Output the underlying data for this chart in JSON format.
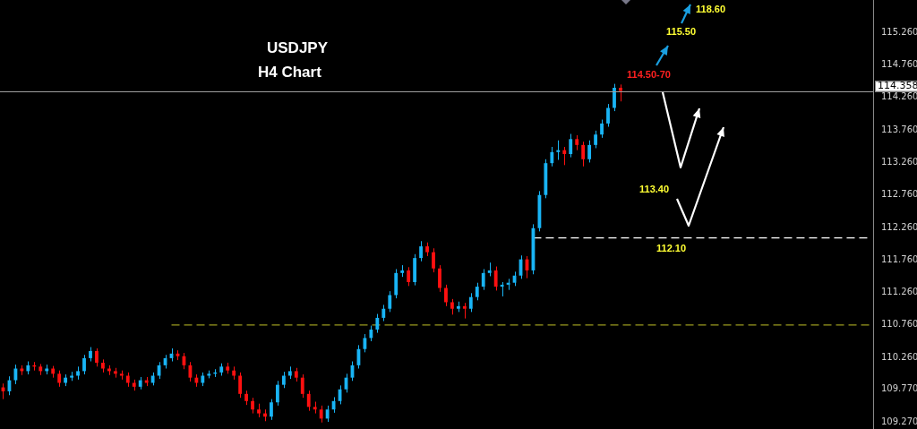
{
  "chart_data": {
    "type": "candlestick",
    "title": "USDJPY",
    "subtitle": "H4 Chart",
    "categories": [
      null,
      null,
      null,
      null,
      null,
      null,
      null,
      null,
      null,
      null,
      null,
      null,
      null,
      null,
      null,
      null,
      null,
      null,
      null,
      null,
      null,
      null,
      null,
      null,
      null,
      null,
      null,
      null,
      null,
      null,
      null,
      null,
      null,
      null,
      null,
      null,
      null,
      null,
      null,
      null,
      null,
      null,
      null,
      null,
      null,
      null,
      null,
      null,
      null,
      null,
      null,
      null,
      null,
      null,
      null,
      null,
      null,
      null,
      null,
      null,
      null,
      null,
      null,
      null,
      null,
      null,
      null,
      null,
      null,
      null,
      null,
      null,
      null,
      null,
      null,
      null,
      null,
      null,
      null,
      null,
      null,
      null,
      null,
      null,
      null,
      null,
      null,
      null,
      null,
      null,
      null,
      null,
      null,
      null,
      null,
      null,
      null,
      null,
      null,
      null,
      null,
      null,
      null,
      null,
      null,
      null,
      null,
      null,
      null,
      null,
      null,
      null,
      null,
      null,
      null,
      null,
      null,
      null,
      null,
      null,
      null,
      null,
      null,
      null,
      null,
      null,
      null,
      null,
      null,
      null,
      null,
      null,
      null,
      null,
      null,
      null,
      null,
      null,
      null,
      null
    ],
    "colors": [
      "#ff1010",
      "#19b4f5",
      "#19b4f5",
      "#ff1010",
      "#19b4f5",
      "#ff1010",
      "#ff1010",
      "#19b4f5",
      "#ff1010",
      "#ff1010",
      "#19b4f5",
      "#19b4f5",
      "#19b4f5",
      "#19b4f5",
      "#19b4f5",
      "#ff1010",
      "#ff1010",
      "#ff1010",
      "#ff1010",
      "#ff1010",
      "#ff1010",
      "#ff1010",
      "#19b4f5",
      "#ff1010",
      "#19b4f5",
      "#19b4f5",
      "#19b4f5",
      "#19b4f5",
      "#ff1010",
      "#ff1010",
      "#ff1010",
      "#ff1010",
      "#19b4f5",
      "#19b4f5",
      "#19b4f5",
      "#19b4f5",
      "#ff1010",
      "#ff1010",
      "#ff1010",
      "#ff1010",
      "#ff1010",
      "#ff1010",
      "#ff1010",
      "#19b4f5",
      "#19b4f5",
      "#19b4f5",
      "#19b4f5",
      "#ff1010",
      "#ff1010",
      "#ff1010",
      "#ff1010",
      "#ff1010",
      "#19b4f5",
      "#19b4f5",
      "#19b4f5",
      "#19b4f5",
      "#19b4f5",
      "#19b4f5",
      "#19b4f5",
      "#19b4f5",
      "#19b4f5",
      "#19b4f5",
      "#19b4f5",
      "#19b4f5",
      "#19b4f5",
      "#ff1010",
      "#19b4f5",
      "#19b4f5",
      "#ff1010",
      "#ff1010",
      "#ff1010",
      "#ff1010",
      "#ff1010",
      "#19b4f5",
      "#ff1010",
      "#19b4f5",
      "#19b4f5",
      "#19b4f5",
      "#19b4f5",
      "#ff1010",
      "#19b4f5",
      "#19b4f5",
      "#19b4f5",
      "#19b4f5",
      "#ff1010",
      "#19b4f5",
      "#19b4f5",
      "#19b4f5",
      "#19b4f5",
      "#19b4f5",
      "#ff1010",
      "#19b4f5",
      "#ff1010",
      "#ff1010",
      "#19b4f5",
      "#19b4f5",
      "#19b4f5",
      "#19b4f5",
      "#19b4f5",
      "#ff1010",
      null,
      null,
      null,
      null,
      null,
      null,
      null,
      null,
      null,
      null,
      null,
      null,
      null,
      null,
      null,
      null,
      null,
      null,
      null,
      null,
      null,
      null,
      null,
      null,
      null,
      null,
      null,
      null,
      null,
      null,
      null,
      null,
      null,
      null,
      null,
      null,
      null,
      null,
      null,
      null
    ],
    "ohlc": [
      [
        109.8,
        109.86,
        109.62,
        109.74
      ],
      [
        109.74,
        109.97,
        109.68,
        109.91
      ],
      [
        109.91,
        110.15,
        109.85,
        110.09
      ],
      [
        110.09,
        110.14,
        109.99,
        110.05
      ],
      [
        110.05,
        110.2,
        110.0,
        110.14
      ],
      [
        110.14,
        110.19,
        110.06,
        110.12
      ],
      [
        110.12,
        110.16,
        109.99,
        110.05
      ],
      [
        110.05,
        110.15,
        110.0,
        110.09
      ],
      [
        110.09,
        110.13,
        109.95,
        110.01
      ],
      [
        110.01,
        110.06,
        109.81,
        109.87
      ],
      [
        109.87,
        110.0,
        109.82,
        109.95
      ],
      [
        109.95,
        110.04,
        109.9,
        109.98
      ],
      [
        109.98,
        110.12,
        109.92,
        110.05
      ],
      [
        110.05,
        110.3,
        110.0,
        110.25
      ],
      [
        110.25,
        110.42,
        110.2,
        110.36
      ],
      [
        110.36,
        110.4,
        110.12,
        110.18
      ],
      [
        110.18,
        110.23,
        110.03,
        110.09
      ],
      [
        110.09,
        110.14,
        109.99,
        110.05
      ],
      [
        110.05,
        110.1,
        109.95,
        110.01
      ],
      [
        110.01,
        110.06,
        109.92,
        109.98
      ],
      [
        109.98,
        110.03,
        109.81,
        109.87
      ],
      [
        109.87,
        109.92,
        109.75,
        109.81
      ],
      [
        109.81,
        109.96,
        109.77,
        109.91
      ],
      [
        109.91,
        109.96,
        109.82,
        109.87
      ],
      [
        109.87,
        110.03,
        109.83,
        109.98
      ],
      [
        109.98,
        110.19,
        109.93,
        110.14
      ],
      [
        110.14,
        110.3,
        110.09,
        110.25
      ],
      [
        110.25,
        110.4,
        110.2,
        110.32
      ],
      [
        110.32,
        110.37,
        110.22,
        110.28
      ],
      [
        110.28,
        110.33,
        110.08,
        110.14
      ],
      [
        110.14,
        110.19,
        109.89,
        109.95
      ],
      [
        109.95,
        110.0,
        109.81,
        109.87
      ],
      [
        109.87,
        110.03,
        109.82,
        109.98
      ],
      [
        109.98,
        110.06,
        109.94,
        110.01
      ],
      [
        110.01,
        110.08,
        109.96,
        110.03
      ],
      [
        110.03,
        110.17,
        109.98,
        110.12
      ],
      [
        110.12,
        110.18,
        110.01,
        110.06
      ],
      [
        110.06,
        110.12,
        109.92,
        109.98
      ],
      [
        109.98,
        110.03,
        109.64,
        109.7
      ],
      [
        109.7,
        109.75,
        109.53,
        109.59
      ],
      [
        109.59,
        109.64,
        109.4,
        109.46
      ],
      [
        109.46,
        109.55,
        109.34,
        109.4
      ],
      [
        109.4,
        109.46,
        109.28,
        109.35
      ],
      [
        109.35,
        109.62,
        109.3,
        109.57
      ],
      [
        109.57,
        109.9,
        109.52,
        109.84
      ],
      [
        109.84,
        110.04,
        109.79,
        109.98
      ],
      [
        109.98,
        110.12,
        109.93,
        110.05
      ],
      [
        110.05,
        110.1,
        109.89,
        109.95
      ],
      [
        109.95,
        110.0,
        109.64,
        109.7
      ],
      [
        109.7,
        109.75,
        109.44,
        109.5
      ],
      [
        109.5,
        109.58,
        109.4,
        109.46
      ],
      [
        109.46,
        109.52,
        109.26,
        109.32
      ],
      [
        109.32,
        109.52,
        109.27,
        109.46
      ],
      [
        109.46,
        109.65,
        109.41,
        109.59
      ],
      [
        109.59,
        109.83,
        109.54,
        109.77
      ],
      [
        109.77,
        110.01,
        109.72,
        109.95
      ],
      [
        109.95,
        110.2,
        109.9,
        110.14
      ],
      [
        110.14,
        110.45,
        110.09,
        110.39
      ],
      [
        110.39,
        110.62,
        110.34,
        110.56
      ],
      [
        110.56,
        110.75,
        110.51,
        110.69
      ],
      [
        110.69,
        110.93,
        110.64,
        110.87
      ],
      [
        110.87,
        111.07,
        110.82,
        111.01
      ],
      [
        111.01,
        111.28,
        110.96,
        111.22
      ],
      [
        111.22,
        111.62,
        111.17,
        111.56
      ],
      [
        111.56,
        111.68,
        111.5,
        111.6
      ],
      [
        111.6,
        111.65,
        111.36,
        111.42
      ],
      [
        111.42,
        111.85,
        111.37,
        111.79
      ],
      [
        111.79,
        112.05,
        111.74,
        111.97
      ],
      [
        111.97,
        112.03,
        111.82,
        111.88
      ],
      [
        111.88,
        111.94,
        111.57,
        111.63
      ],
      [
        111.63,
        111.68,
        111.27,
        111.33
      ],
      [
        111.33,
        111.38,
        111.05,
        111.11
      ],
      [
        111.11,
        111.16,
        110.92,
        111.01
      ],
      [
        111.01,
        111.12,
        110.96,
        111.05
      ],
      [
        111.05,
        111.1,
        110.86,
        111.01
      ],
      [
        111.01,
        111.25,
        110.96,
        111.19
      ],
      [
        111.19,
        111.41,
        111.14,
        111.35
      ],
      [
        111.35,
        111.62,
        111.3,
        111.56
      ],
      [
        111.56,
        111.72,
        111.51,
        111.6
      ],
      [
        111.6,
        111.66,
        111.29,
        111.35
      ],
      [
        111.35,
        111.42,
        111.2,
        111.38
      ],
      [
        111.38,
        111.47,
        111.3,
        111.41
      ],
      [
        111.41,
        111.58,
        111.36,
        111.52
      ],
      [
        111.52,
        111.83,
        111.47,
        111.77
      ],
      [
        111.77,
        111.82,
        111.48,
        111.6
      ],
      [
        111.6,
        112.31,
        111.54,
        112.25
      ],
      [
        112.25,
        112.82,
        112.2,
        112.76
      ],
      [
        112.76,
        113.31,
        112.71,
        113.25
      ],
      [
        113.25,
        113.5,
        113.2,
        113.42
      ],
      [
        113.42,
        113.6,
        113.3,
        113.45
      ],
      [
        113.45,
        113.5,
        113.22,
        113.39
      ],
      [
        113.39,
        113.7,
        113.34,
        113.62
      ],
      [
        113.62,
        113.68,
        113.45,
        113.53
      ],
      [
        113.53,
        113.58,
        113.2,
        113.31
      ],
      [
        113.31,
        113.6,
        113.26,
        113.53
      ],
      [
        113.53,
        113.75,
        113.48,
        113.69
      ],
      [
        113.69,
        113.92,
        113.64,
        113.86
      ],
      [
        113.86,
        114.16,
        113.81,
        114.1
      ],
      [
        114.1,
        114.47,
        114.05,
        114.41
      ],
      [
        114.41,
        114.46,
        114.2,
        114.36
      ],
      null,
      null,
      null,
      null,
      null,
      null,
      null,
      null,
      null,
      null,
      null,
      null,
      null,
      null,
      null,
      null,
      null,
      null,
      null,
      null,
      null,
      null,
      null,
      null,
      null,
      null,
      null,
      null,
      null,
      null,
      null,
      null,
      null,
      null,
      null,
      null,
      null,
      null,
      null,
      null
    ],
    "series": [
      {
        "type": "line",
        "color": "#ffffff",
        "line_style": "dashed",
        "values": [
          null,
          null,
          null,
          null,
          null,
          null,
          null,
          null,
          null,
          null,
          null,
          null,
          null,
          null,
          null,
          null,
          null,
          null,
          null,
          null,
          null,
          null,
          null,
          null,
          null,
          null,
          null,
          null,
          null,
          null,
          null,
          null,
          null,
          null,
          null,
          null,
          null,
          null,
          null,
          null,
          null,
          null,
          null,
          null,
          null,
          null,
          null,
          null,
          null,
          null,
          null,
          null,
          null,
          null,
          null,
          null,
          null,
          null,
          null,
          null,
          null,
          null,
          null,
          null,
          null,
          null,
          null,
          null,
          null,
          null,
          null,
          null,
          null,
          null,
          null,
          null,
          null,
          null,
          null,
          null,
          null,
          null,
          null,
          null,
          null,
          112.1,
          112.1,
          112.1,
          112.1,
          112.1,
          112.1,
          112.1,
          112.1,
          112.1,
          112.1,
          112.1,
          112.1,
          112.1,
          112.1,
          112.1,
          112.1,
          112.1,
          112.1,
          112.1,
          112.1,
          112.1,
          112.1,
          112.1,
          112.1,
          112.1,
          112.1,
          112.1,
          112.1,
          112.1,
          112.1,
          112.1,
          112.1,
          112.1,
          112.1,
          112.1,
          112.1,
          112.1,
          112.1,
          112.1,
          112.1,
          112.1,
          112.1,
          112.1,
          112.1,
          112.1,
          112.1,
          112.1,
          112.1,
          112.1,
          112.1,
          112.1,
          112.1,
          112.1,
          112.1,
          112.1
        ]
      },
      {
        "type": "line",
        "color": "#9a9a1e",
        "line_style": "dashed",
        "values": [
          null,
          null,
          null,
          null,
          null,
          null,
          null,
          null,
          null,
          null,
          null,
          null,
          null,
          null,
          null,
          null,
          null,
          null,
          null,
          null,
          null,
          null,
          null,
          null,
          null,
          null,
          null,
          110.76,
          110.76,
          110.76,
          110.76,
          110.76,
          110.76,
          110.76,
          110.76,
          110.76,
          110.76,
          110.76,
          110.76,
          110.76,
          110.76,
          110.76,
          110.76,
          110.76,
          110.76,
          110.76,
          110.76,
          110.76,
          110.76,
          110.76,
          110.76,
          110.76,
          110.76,
          110.76,
          110.76,
          110.76,
          110.76,
          110.76,
          110.76,
          110.76,
          110.76,
          110.76,
          110.76,
          110.76,
          110.76,
          110.76,
          110.76,
          110.76,
          110.76,
          110.76,
          110.76,
          110.76,
          110.76,
          110.76,
          110.76,
          110.76,
          110.76,
          110.76,
          110.76,
          110.76,
          110.76,
          110.76,
          110.76,
          110.76,
          110.76,
          110.76,
          110.76,
          110.76,
          110.76,
          110.76,
          110.76,
          110.76,
          110.76,
          110.76,
          110.76,
          110.76,
          110.76,
          110.76,
          110.76,
          110.76,
          110.76,
          110.76,
          110.76,
          110.76,
          110.76,
          110.76,
          110.76,
          110.76,
          110.76,
          110.76,
          110.76,
          110.76,
          110.76,
          110.76,
          110.76,
          110.76,
          110.76,
          110.76,
          110.76,
          110.76,
          110.76,
          110.76,
          110.76,
          110.76,
          110.76,
          110.76,
          110.76,
          110.76,
          110.76,
          110.76,
          110.76,
          110.76,
          110.76,
          110.76,
          110.76,
          110.76,
          110.76,
          110.76,
          110.76,
          110.76
        ]
      }
    ],
    "ref_lines": [
      {
        "axis": "y",
        "value": 114.358,
        "label": "114.358",
        "color": "#a0a0a0",
        "line_style": "solid"
      }
    ],
    "annotations": [
      "114.50-70",
      "115.50",
      "118.60",
      "113.40",
      {
        "text": "112.10",
        "y": 112.1
      }
    ],
    "ylim": [
      109.16,
      115.76
    ],
    "yticks": [
      {
        "value": 109.27,
        "label": "109.270"
      },
      {
        "value": 109.77,
        "label": "109.770"
      },
      {
        "value": 110.26,
        "label": "110.260"
      },
      {
        "value": 110.76,
        "label": "110.760"
      },
      {
        "value": 111.26,
        "label": "111.260"
      },
      {
        "value": 111.76,
        "label": "111.760"
      },
      {
        "value": 112.26,
        "label": "112.260"
      },
      {
        "value": 112.76,
        "label": "112.760"
      },
      {
        "value": 113.26,
        "label": "113.260"
      },
      {
        "value": 113.76,
        "label": "113.760"
      },
      {
        "value": 114.26,
        "label": "114.260"
      },
      {
        "value": 114.76,
        "label": "114.760"
      },
      {
        "value": 115.26,
        "label": "115.260"
      }
    ],
    "tick_labels": "y",
    "grid": false,
    "legend": false
  }
}
